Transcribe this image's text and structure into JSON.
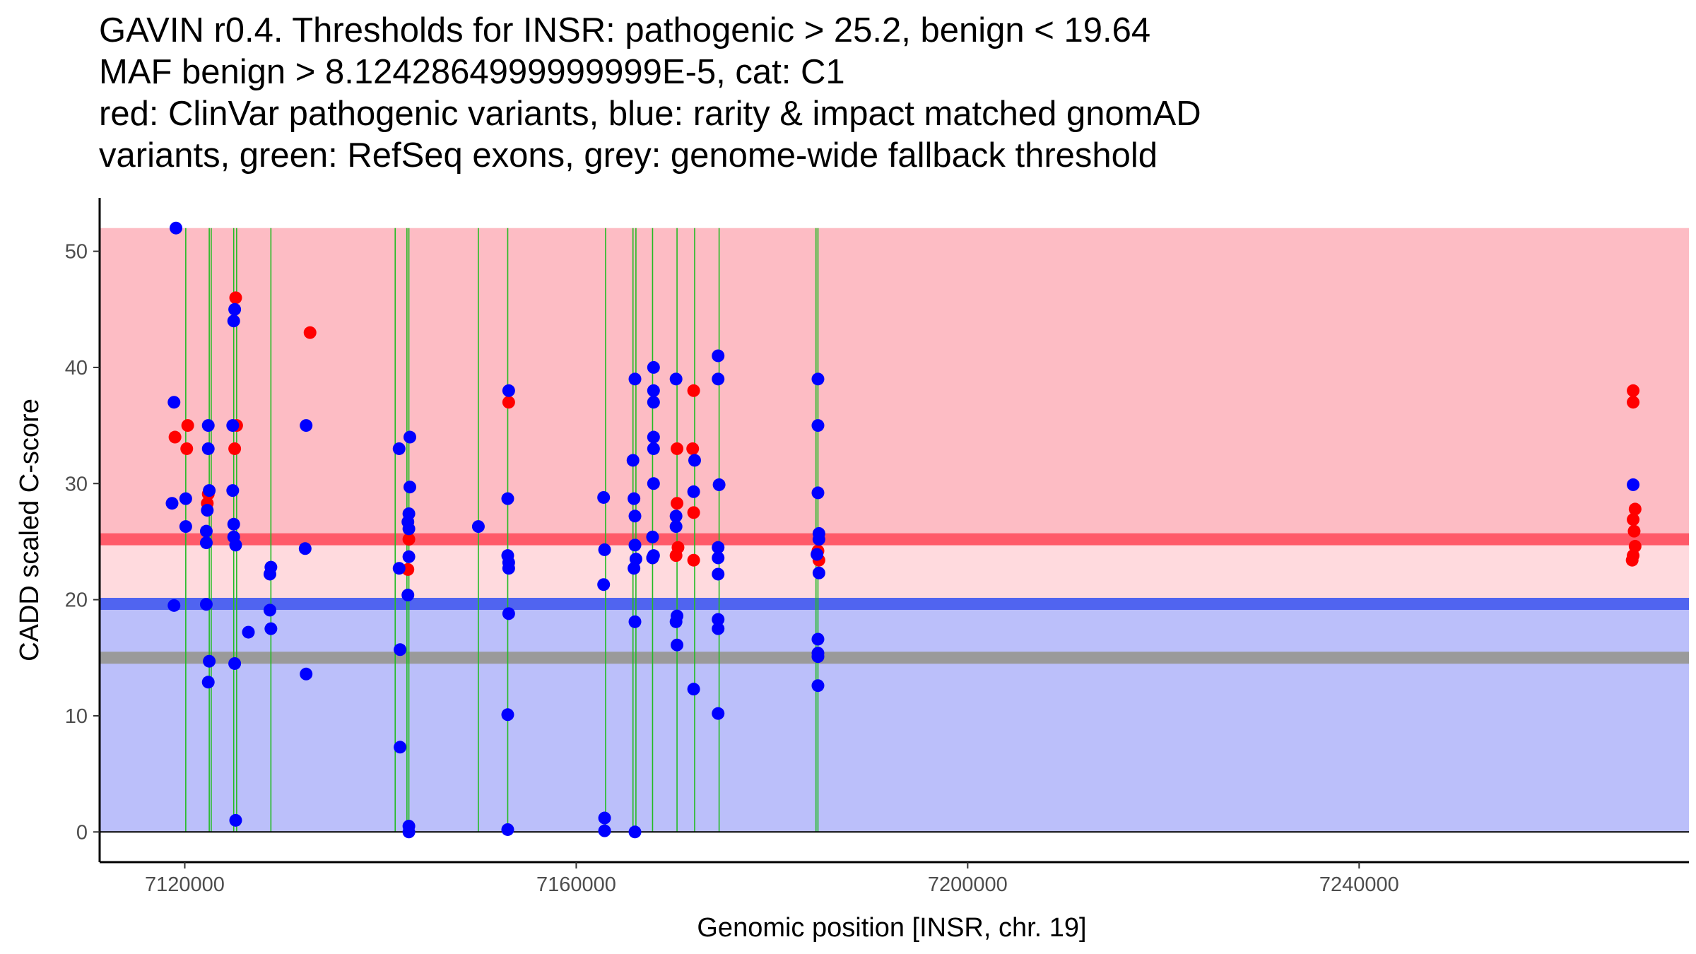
{
  "chart_data": {
    "type": "scatter",
    "title_lines": [
      "GAVIN r0.4. Thresholds for INSR: pathogenic > 25.2, benign < 19.64",
      "MAF benign > 8.1242864999999999E-5, cat: C1",
      "red: ClinVar pathogenic variants, blue: rarity & impact matched gnomAD",
      "variants, green: RefSeq exons, grey: genome-wide fallback threshold"
    ],
    "xlabel": "Genomic position [INSR, chr. 19]",
    "ylabel": "CADD scaled C-score",
    "xlim": [
      7111300,
      7273700
    ],
    "ylim": [
      -2.6,
      54.6
    ],
    "x_ticks": [
      7120000,
      7160000,
      7200000,
      7240000
    ],
    "x_tick_labels": [
      "7120000",
      "7160000",
      "7200000",
      "7240000"
    ],
    "y_ticks": [
      0,
      10,
      20,
      30,
      40,
      50
    ],
    "y_tick_labels": [
      "0",
      "10",
      "20",
      "30",
      "40",
      "50"
    ],
    "thresholds": {
      "pathogenic": 25.2,
      "benign": 19.64,
      "fallback": 15
    },
    "regions": [
      {
        "name": "pathogenic-zone",
        "y0": 25.2,
        "y1": 52,
        "color": "#fdbcc4"
      },
      {
        "name": "uncertain-zone",
        "y0": 19.64,
        "y1": 25.2,
        "color": "#ffdade"
      },
      {
        "name": "benign-zone",
        "y0": 0,
        "y1": 19.64,
        "color": "#bbbffa"
      }
    ],
    "region_x_range": [
      7111300,
      7273700
    ],
    "threshold_lines": [
      {
        "name": "pathogenic-threshold",
        "y": 25.2,
        "color": "#ff5a69"
      },
      {
        "name": "benign-threshold",
        "y": 19.64,
        "color": "#5064f0"
      },
      {
        "name": "fallback-threshold",
        "y": 15,
        "color": "#9a9a9a"
      }
    ],
    "colors": {
      "pathogenic": "#ff0000",
      "benign": "#0000ff",
      "exon": "#22bb22"
    },
    "exons": [
      7120100,
      7122500,
      7122700,
      7125000,
      7125300,
      7128800,
      7141500,
      7142700,
      7142900,
      7150000,
      7153000,
      7163000,
      7165800,
      7166100,
      7167800,
      7170300,
      7172100,
      7174600,
      7184500,
      7184700
    ],
    "series": [
      {
        "name": "ClinVar pathogenic variants",
        "color": "#ff0000",
        "points": [
          [
            7119000,
            34
          ],
          [
            7120300,
            35
          ],
          [
            7120200,
            33
          ],
          [
            7122300,
            28.3
          ],
          [
            7122400,
            29.1
          ],
          [
            7125200,
            46
          ],
          [
            7125300,
            35
          ],
          [
            7125100,
            33
          ],
          [
            7132800,
            43
          ],
          [
            7142900,
            25.2
          ],
          [
            7142800,
            22.6
          ],
          [
            7153100,
            37
          ],
          [
            7167800,
            23.6
          ],
          [
            7170300,
            33
          ],
          [
            7170300,
            28.3
          ],
          [
            7170400,
            24.5
          ],
          [
            7170200,
            23.8
          ],
          [
            7172000,
            38
          ],
          [
            7171900,
            33
          ],
          [
            7172000,
            27.5
          ],
          [
            7172000,
            23.4
          ],
          [
            7184700,
            24.2
          ],
          [
            7184800,
            23.4
          ],
          [
            7268000,
            38
          ],
          [
            7268000,
            37
          ],
          [
            7268200,
            27.8
          ],
          [
            7268000,
            26.9
          ],
          [
            7268100,
            25.9
          ],
          [
            7268200,
            24.6
          ],
          [
            7268000,
            23.8
          ],
          [
            7267900,
            23.4
          ]
        ]
      },
      {
        "name": "rarity & impact matched gnomAD variants",
        "color": "#0000ff",
        "points": [
          [
            7119100,
            52
          ],
          [
            7118900,
            37
          ],
          [
            7118700,
            28.3
          ],
          [
            7120100,
            28.7
          ],
          [
            7120100,
            26.3
          ],
          [
            7118900,
            19.5
          ],
          [
            7122400,
            35
          ],
          [
            7122400,
            33
          ],
          [
            7122500,
            29.4
          ],
          [
            7122300,
            27.7
          ],
          [
            7122200,
            25.9
          ],
          [
            7122200,
            24.9
          ],
          [
            7122200,
            19.6
          ],
          [
            7122500,
            14.7
          ],
          [
            7122400,
            12.9
          ],
          [
            7125100,
            45
          ],
          [
            7125000,
            44
          ],
          [
            7124900,
            35
          ],
          [
            7124900,
            29.4
          ],
          [
            7125000,
            26.5
          ],
          [
            7125000,
            25.4
          ],
          [
            7125200,
            24.7
          ],
          [
            7125100,
            14.5
          ],
          [
            7125200,
            1
          ],
          [
            7126500,
            17.2
          ],
          [
            7128800,
            22.8
          ],
          [
            7128700,
            22.2
          ],
          [
            7128700,
            19.1
          ],
          [
            7128800,
            17.5
          ],
          [
            7132400,
            35
          ],
          [
            7132300,
            24.4
          ],
          [
            7132400,
            13.6
          ],
          [
            7141900,
            33
          ],
          [
            7141900,
            22.7
          ],
          [
            7142000,
            15.7
          ],
          [
            7142000,
            7.3
          ],
          [
            7143000,
            34
          ],
          [
            7143000,
            29.7
          ],
          [
            7142900,
            27.4
          ],
          [
            7142800,
            26.7
          ],
          [
            7142900,
            26.1
          ],
          [
            7142900,
            23.7
          ],
          [
            7142800,
            20.4
          ],
          [
            7142900,
            0.5
          ],
          [
            7142900,
            0
          ],
          [
            7150000,
            26.3
          ],
          [
            7153100,
            38
          ],
          [
            7153000,
            28.7
          ],
          [
            7153000,
            23.8
          ],
          [
            7153100,
            23.2
          ],
          [
            7153100,
            22.7
          ],
          [
            7153100,
            18.8
          ],
          [
            7153000,
            10.1
          ],
          [
            7153000,
            0.2
          ],
          [
            7162800,
            28.8
          ],
          [
            7162900,
            24.3
          ],
          [
            7162800,
            21.3
          ],
          [
            7162900,
            1.2
          ],
          [
            7162900,
            0.1
          ],
          [
            7165800,
            32
          ],
          [
            7166000,
            39
          ],
          [
            7165900,
            28.7
          ],
          [
            7166000,
            27.2
          ],
          [
            7166000,
            24.7
          ],
          [
            7166100,
            23.5
          ],
          [
            7165900,
            22.7
          ],
          [
            7166000,
            18.1
          ],
          [
            7166000,
            0
          ],
          [
            7167900,
            40
          ],
          [
            7167900,
            38
          ],
          [
            7167900,
            37
          ],
          [
            7167900,
            34
          ],
          [
            7167900,
            33
          ],
          [
            7167900,
            30
          ],
          [
            7167800,
            25.4
          ],
          [
            7167800,
            23.6
          ],
          [
            7167900,
            23.8
          ],
          [
            7170200,
            39
          ],
          [
            7170200,
            27.2
          ],
          [
            7170200,
            26.3
          ],
          [
            7170300,
            18.6
          ],
          [
            7170200,
            18.1
          ],
          [
            7170300,
            16.1
          ],
          [
            7172100,
            32
          ],
          [
            7172000,
            29.3
          ],
          [
            7172000,
            12.3
          ],
          [
            7174500,
            41
          ],
          [
            7174500,
            39
          ],
          [
            7174600,
            29.9
          ],
          [
            7174500,
            24.5
          ],
          [
            7174500,
            23.6
          ],
          [
            7174500,
            22.2
          ],
          [
            7174500,
            18.3
          ],
          [
            7174500,
            17.5
          ],
          [
            7174500,
            10.2
          ],
          [
            7184700,
            39
          ],
          [
            7184700,
            35
          ],
          [
            7184700,
            29.2
          ],
          [
            7184800,
            25.7
          ],
          [
            7184800,
            25.2
          ],
          [
            7184600,
            23.9
          ],
          [
            7184800,
            22.3
          ],
          [
            7184700,
            16.6
          ],
          [
            7184700,
            15.4
          ],
          [
            7184700,
            15.1
          ],
          [
            7184700,
            12.6
          ],
          [
            7268000,
            29.9
          ]
        ]
      }
    ]
  }
}
